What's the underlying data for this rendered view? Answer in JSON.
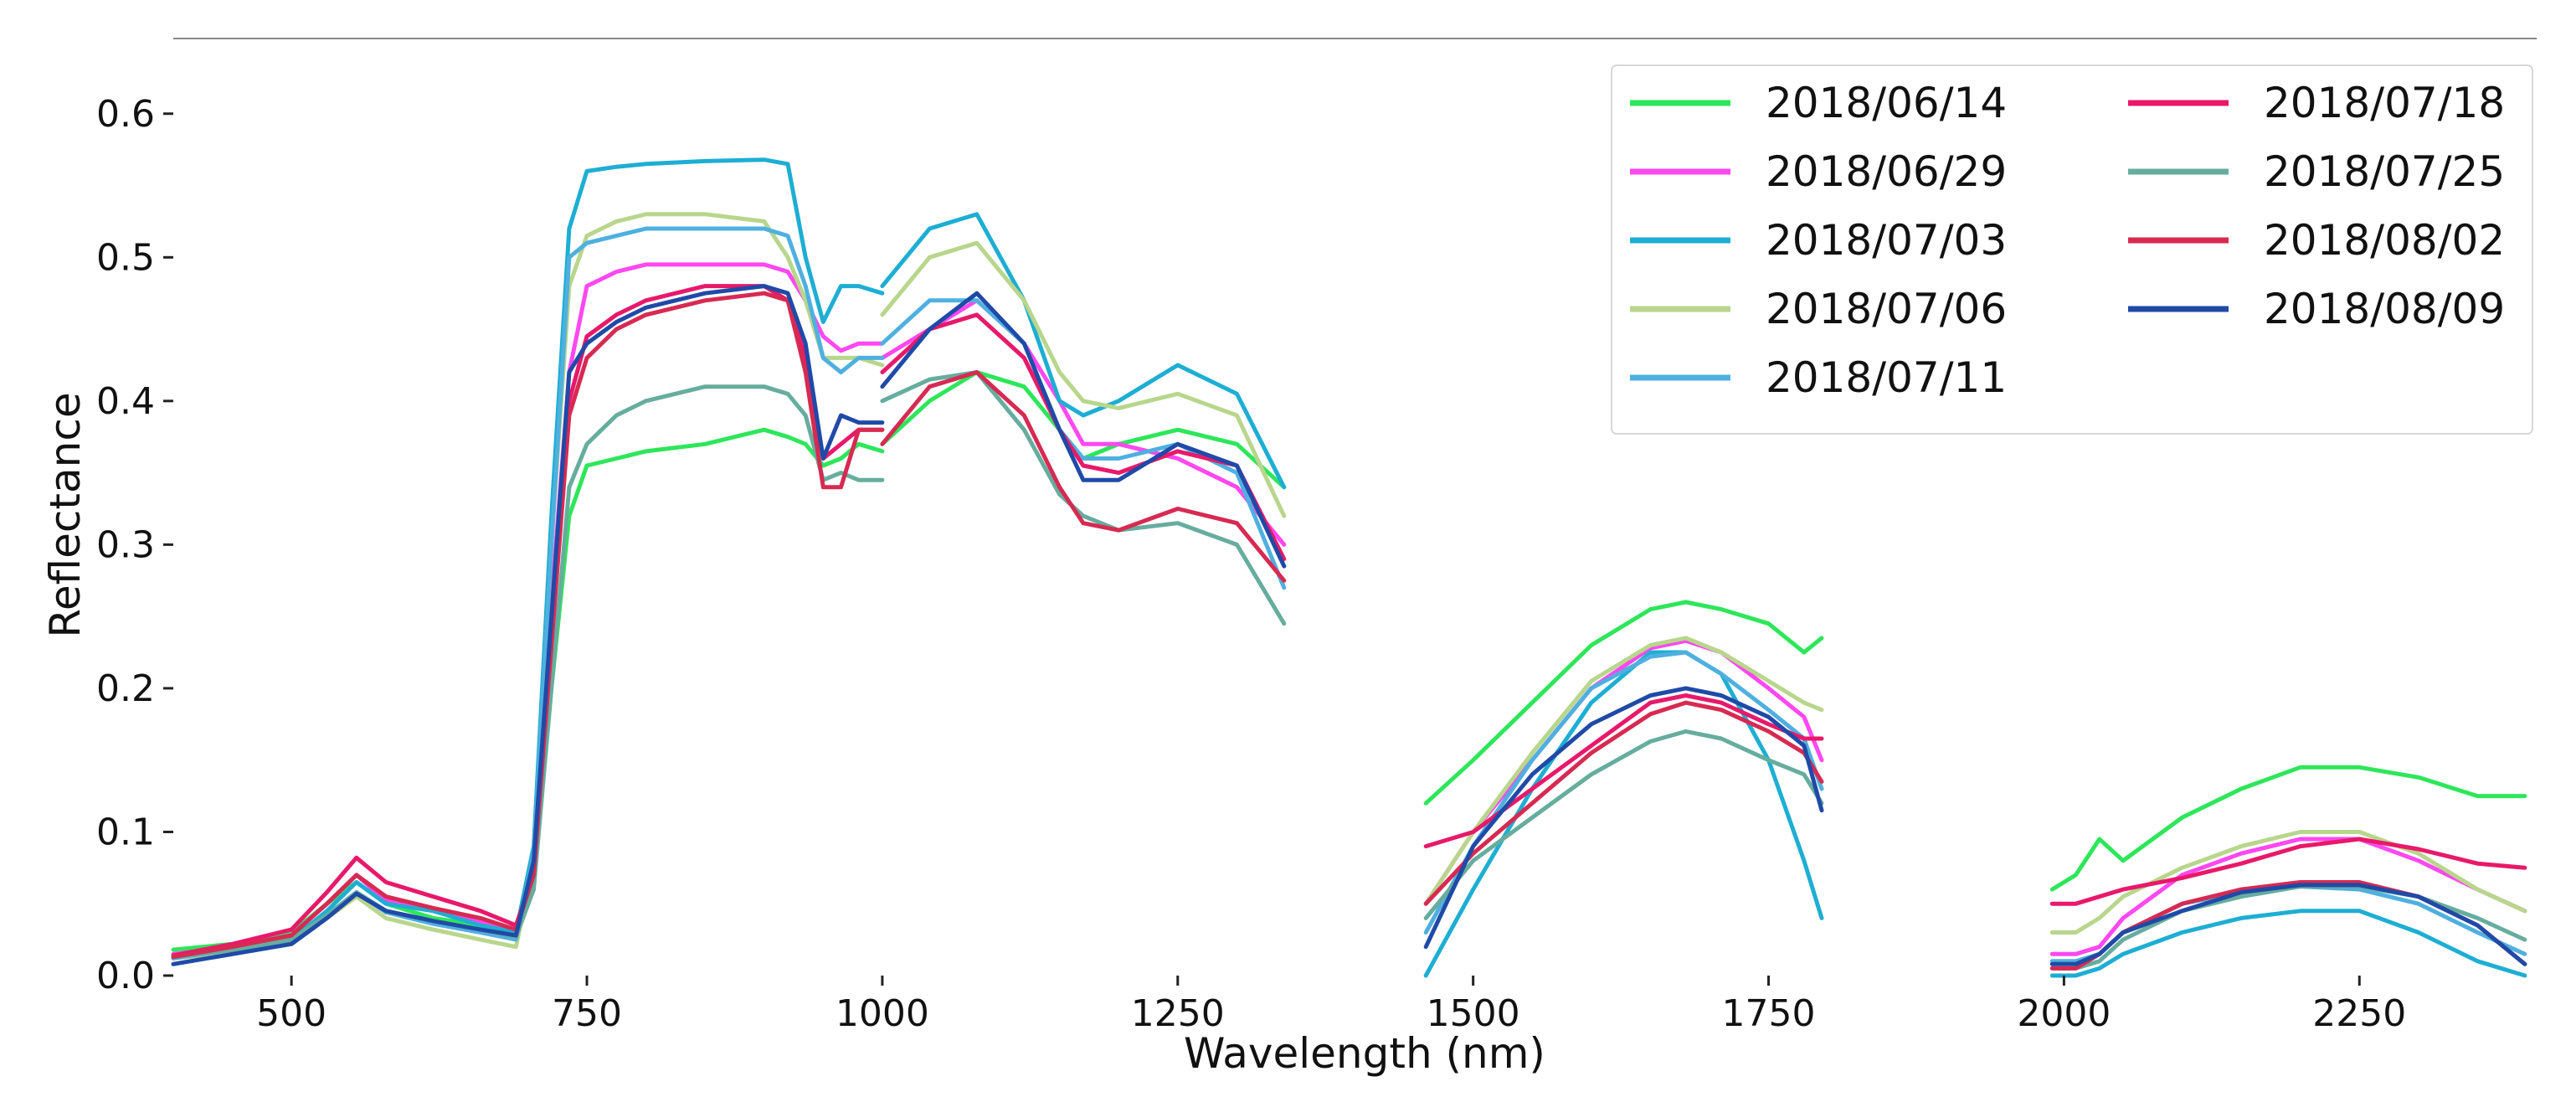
{
  "chart_data": {
    "type": "line",
    "title": "",
    "xlabel": "Wavelength (nm)",
    "ylabel": "Reflectance",
    "xlim": [
      400,
      2400
    ],
    "ylim": [
      0,
      0.65
    ],
    "xticks": [
      500,
      750,
      1000,
      1250,
      1500,
      1750,
      2000,
      2250
    ],
    "yticks": [
      0.0,
      0.1,
      0.2,
      0.3,
      0.4,
      0.5,
      0.6
    ],
    "xtick_labels": [
      "500",
      "750",
      "1000",
      "1250",
      "1500",
      "1750",
      "2000",
      "2250"
    ],
    "ytick_labels": [
      "0.0",
      "0.1",
      "0.2",
      "0.3",
      "0.4",
      "0.5",
      "0.6"
    ],
    "legend": {
      "position": "top-right",
      "columns": 2
    },
    "segments": [
      {
        "x": [
          400,
          450,
          500,
          530,
          555,
          580,
          620,
          660,
          690,
          705,
          720,
          735,
          750,
          775,
          800,
          850,
          900,
          920,
          935,
          950,
          965,
          980,
          1000
        ]
      },
      {
        "x": [
          1000,
          1040,
          1080,
          1120,
          1150,
          1170,
          1200,
          1250,
          1300,
          1340
        ]
      },
      {
        "x": [
          1460,
          1500,
          1550,
          1600,
          1650,
          1680,
          1710,
          1750,
          1780,
          1795
        ]
      },
      {
        "x": [
          1990,
          2010,
          2030,
          2050,
          2100,
          2150,
          2200,
          2250,
          2300,
          2350,
          2390
        ]
      }
    ],
    "series": [
      {
        "name": "2018/06/14",
        "color": "#2ee65a",
        "values": [
          [
            0.018,
            0.022,
            0.03,
            0.05,
            0.065,
            0.05,
            0.04,
            0.035,
            0.03,
            0.07,
            0.2,
            0.32,
            0.355,
            0.36,
            0.365,
            0.37,
            0.38,
            0.375,
            0.37,
            0.355,
            0.36,
            0.37,
            0.365
          ],
          [
            0.37,
            0.4,
            0.42,
            0.41,
            0.38,
            0.36,
            0.37,
            0.38,
            0.37,
            0.34
          ],
          [
            0.12,
            0.15,
            0.19,
            0.23,
            0.255,
            0.26,
            0.255,
            0.245,
            0.225,
            0.235
          ],
          [
            0.06,
            0.07,
            0.095,
            0.08,
            0.11,
            0.13,
            0.145,
            0.145,
            0.138,
            0.125,
            0.125
          ]
        ]
      },
      {
        "name": "2018/06/29",
        "color": "#ff48f0",
        "values": [
          [
            0.015,
            0.02,
            0.028,
            0.05,
            0.07,
            0.052,
            0.045,
            0.038,
            0.03,
            0.08,
            0.26,
            0.42,
            0.48,
            0.49,
            0.495,
            0.495,
            0.495,
            0.49,
            0.47,
            0.445,
            0.435,
            0.44,
            0.44
          ],
          [
            0.43,
            0.45,
            0.47,
            0.44,
            0.4,
            0.37,
            0.37,
            0.36,
            0.34,
            0.3
          ],
          [
            0.05,
            0.1,
            0.15,
            0.2,
            0.228,
            0.233,
            0.225,
            0.2,
            0.18,
            0.15
          ],
          [
            0.015,
            0.015,
            0.02,
            0.04,
            0.07,
            0.085,
            0.095,
            0.095,
            0.08,
            0.06,
            0.045
          ]
        ]
      },
      {
        "name": "2018/07/03",
        "color": "#1eaed3",
        "values": [
          [
            0.012,
            0.018,
            0.025,
            0.045,
            0.065,
            0.05,
            0.045,
            0.035,
            0.03,
            0.09,
            0.32,
            0.52,
            0.56,
            0.563,
            0.565,
            0.567,
            0.568,
            0.565,
            0.5,
            0.455,
            0.48,
            0.48,
            0.475
          ],
          [
            0.48,
            0.52,
            0.53,
            0.47,
            0.4,
            0.39,
            0.4,
            0.425,
            0.405,
            0.34
          ],
          [
            0.0,
            0.06,
            0.13,
            0.19,
            0.225,
            0.225,
            0.21,
            0.15,
            0.08,
            0.04
          ],
          [
            0.0,
            0.0,
            0.005,
            0.015,
            0.03,
            0.04,
            0.045,
            0.045,
            0.03,
            0.01,
            0.0
          ]
        ]
      },
      {
        "name": "2018/07/06",
        "color": "#b8d68c",
        "values": [
          [
            0.012,
            0.016,
            0.022,
            0.04,
            0.055,
            0.04,
            0.032,
            0.025,
            0.02,
            0.08,
            0.3,
            0.48,
            0.515,
            0.525,
            0.53,
            0.53,
            0.525,
            0.5,
            0.47,
            0.43,
            0.43,
            0.43,
            0.425
          ],
          [
            0.46,
            0.5,
            0.51,
            0.47,
            0.42,
            0.4,
            0.395,
            0.405,
            0.39,
            0.32
          ],
          [
            0.05,
            0.1,
            0.155,
            0.205,
            0.23,
            0.235,
            0.225,
            0.205,
            0.19,
            0.185
          ],
          [
            0.03,
            0.03,
            0.04,
            0.055,
            0.075,
            0.09,
            0.1,
            0.1,
            0.085,
            0.06,
            0.045
          ]
        ]
      },
      {
        "name": "2018/07/11",
        "color": "#4fb0e0",
        "values": [
          [
            0.012,
            0.018,
            0.024,
            0.042,
            0.058,
            0.044,
            0.036,
            0.03,
            0.025,
            0.085,
            0.3,
            0.5,
            0.51,
            0.515,
            0.52,
            0.52,
            0.52,
            0.515,
            0.48,
            0.43,
            0.42,
            0.43,
            0.43
          ],
          [
            0.44,
            0.47,
            0.47,
            0.44,
            0.38,
            0.36,
            0.36,
            0.37,
            0.35,
            0.27
          ],
          [
            0.03,
            0.09,
            0.15,
            0.2,
            0.222,
            0.225,
            0.21,
            0.185,
            0.165,
            0.13
          ],
          [
            0.01,
            0.01,
            0.015,
            0.03,
            0.05,
            0.058,
            0.062,
            0.06,
            0.05,
            0.03,
            0.015
          ]
        ]
      },
      {
        "name": "2018/07/18",
        "color": "#e8196a",
        "values": [
          [
            0.014,
            0.022,
            0.032,
            0.058,
            0.082,
            0.065,
            0.055,
            0.045,
            0.035,
            0.07,
            0.24,
            0.4,
            0.445,
            0.46,
            0.47,
            0.48,
            0.48,
            0.47,
            0.43,
            0.36,
            0.37,
            0.38,
            0.38
          ],
          [
            0.42,
            0.45,
            0.46,
            0.43,
            0.38,
            0.355,
            0.35,
            0.365,
            0.355,
            0.29
          ],
          [
            0.09,
            0.1,
            0.13,
            0.16,
            0.19,
            0.195,
            0.19,
            0.175,
            0.165,
            0.165
          ],
          [
            0.05,
            0.05,
            0.055,
            0.06,
            0.068,
            0.078,
            0.09,
            0.095,
            0.088,
            0.078,
            0.075
          ]
        ]
      },
      {
        "name": "2018/07/25",
        "color": "#66ad9e",
        "values": [
          [
            0.013,
            0.018,
            0.025,
            0.042,
            0.058,
            0.045,
            0.038,
            0.032,
            0.027,
            0.06,
            0.2,
            0.34,
            0.37,
            0.39,
            0.4,
            0.41,
            0.41,
            0.405,
            0.39,
            0.345,
            0.35,
            0.345,
            0.345
          ],
          [
            0.4,
            0.415,
            0.42,
            0.38,
            0.335,
            0.32,
            0.31,
            0.315,
            0.3,
            0.245
          ],
          [
            0.04,
            0.08,
            0.11,
            0.14,
            0.163,
            0.17,
            0.165,
            0.15,
            0.14,
            0.12
          ],
          [
            0.005,
            0.005,
            0.01,
            0.025,
            0.045,
            0.055,
            0.062,
            0.062,
            0.055,
            0.04,
            0.025
          ]
        ]
      },
      {
        "name": "2018/08/02",
        "color": "#d72a52",
        "values": [
          [
            0.013,
            0.02,
            0.028,
            0.05,
            0.07,
            0.055,
            0.047,
            0.04,
            0.032,
            0.07,
            0.23,
            0.39,
            0.43,
            0.45,
            0.46,
            0.47,
            0.475,
            0.47,
            0.42,
            0.34,
            0.34,
            0.38,
            0.38
          ],
          [
            0.37,
            0.41,
            0.42,
            0.39,
            0.34,
            0.315,
            0.31,
            0.325,
            0.315,
            0.275
          ],
          [
            0.05,
            0.085,
            0.12,
            0.155,
            0.182,
            0.19,
            0.185,
            0.17,
            0.155,
            0.135
          ],
          [
            0.005,
            0.005,
            0.015,
            0.03,
            0.05,
            0.06,
            0.065,
            0.065,
            0.055,
            0.035,
            0.008
          ]
        ]
      },
      {
        "name": "2018/08/09",
        "color": "#1f4aa7",
        "values": [
          [
            0.008,
            0.015,
            0.022,
            0.04,
            0.057,
            0.045,
            0.038,
            0.032,
            0.028,
            0.08,
            0.25,
            0.42,
            0.44,
            0.455,
            0.465,
            0.475,
            0.48,
            0.475,
            0.44,
            0.36,
            0.39,
            0.385,
            0.385
          ],
          [
            0.41,
            0.45,
            0.475,
            0.44,
            0.38,
            0.345,
            0.345,
            0.37,
            0.355,
            0.285
          ],
          [
            0.02,
            0.09,
            0.14,
            0.175,
            0.195,
            0.2,
            0.195,
            0.18,
            0.16,
            0.115
          ],
          [
            0.008,
            0.008,
            0.015,
            0.03,
            0.045,
            0.058,
            0.063,
            0.063,
            0.055,
            0.035,
            0.008
          ]
        ]
      }
    ]
  }
}
